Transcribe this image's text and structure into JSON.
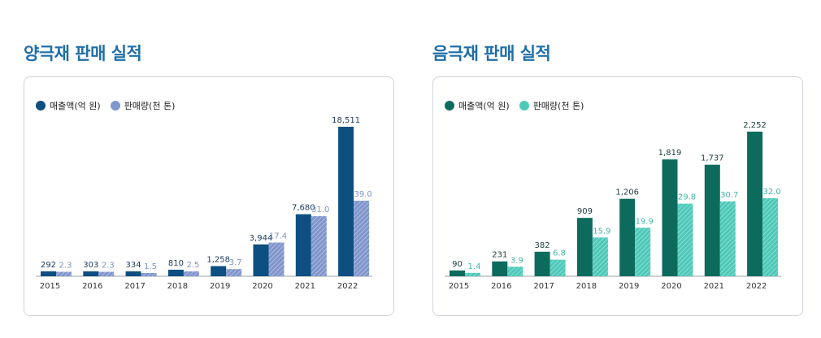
{
  "chart_data": [
    {
      "type": "bar",
      "title": "양극재 판매 실적",
      "categories": [
        "2015",
        "2016",
        "2017",
        "2018",
        "2019",
        "2020",
        "2021",
        "2022"
      ],
      "series": [
        {
          "name": "매출액(억 원)",
          "values": [
            292,
            303,
            334,
            810,
            1258,
            3944,
            7680,
            18511
          ],
          "labels": [
            "292",
            "303",
            "334",
            "810",
            "1,258",
            "3,944",
            "7,680",
            "18,511"
          ],
          "color": "#0d4f80"
        },
        {
          "name": "판매량(천 톤)",
          "values": [
            2.3,
            2.3,
            1.5,
            2.5,
            3.7,
            17.4,
            31.0,
            39.0
          ],
          "labels": [
            "2.3",
            "2.3",
            "1.5",
            "2.5",
            "3.7",
            "17.4",
            "31.0",
            "39.0"
          ],
          "color": "#8196cc",
          "hatched": true
        }
      ],
      "label_colors": [
        "#1b3a5c",
        "#7d92c8"
      ]
    },
    {
      "type": "bar",
      "title": "음극재 판매 실적",
      "categories": [
        "2015",
        "2016",
        "2017",
        "2018",
        "2019",
        "2020",
        "2021",
        "2022"
      ],
      "series": [
        {
          "name": "매출액(억 원)",
          "values": [
            90,
            231,
            382,
            909,
            1206,
            1819,
            1737,
            2252
          ],
          "labels": [
            "90",
            "231",
            "382",
            "909",
            "1,206",
            "1,819",
            "1,737",
            "2,252"
          ],
          "color": "#0d6b5e"
        },
        {
          "name": "판매량(천 톤)",
          "values": [
            1.4,
            3.9,
            6.8,
            15.9,
            19.9,
            29.8,
            30.7,
            32.0
          ],
          "labels": [
            "1.4",
            "3.9",
            "6.8",
            "15.9",
            "19.9",
            "29.8",
            "30.7",
            "32.0"
          ],
          "color": "#4ec9b9",
          "hatched": true
        }
      ],
      "label_colors": [
        "#1b3a3a",
        "#3fb5a5"
      ]
    }
  ]
}
